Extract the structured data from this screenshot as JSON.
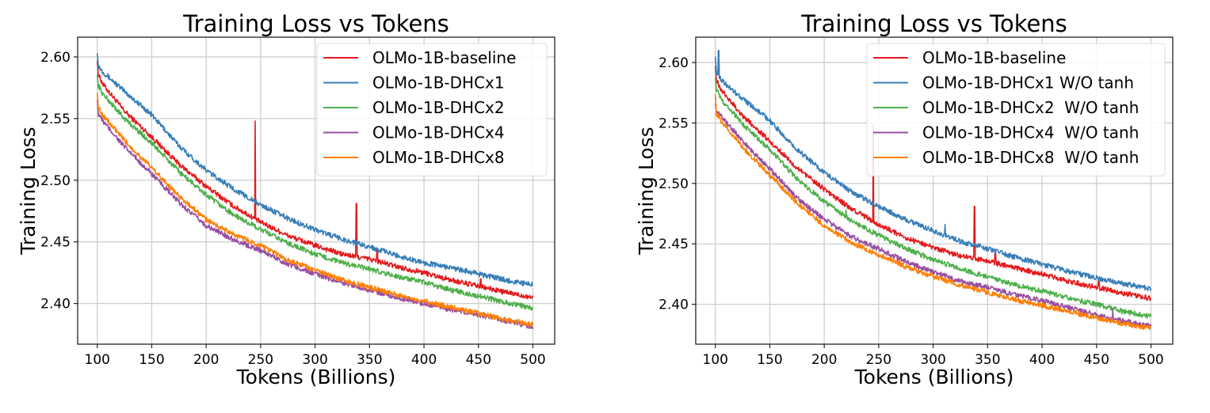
{
  "chart_data": [
    {
      "type": "line",
      "title": "Training Loss vs Tokens",
      "xlabel": "Tokens (Billions)",
      "ylabel": "Training Loss",
      "xlim": [
        82,
        520
      ],
      "ylim": [
        2.367,
        2.616
      ],
      "xticks": [
        100,
        150,
        200,
        250,
        300,
        350,
        400,
        450,
        500
      ],
      "yticks": [
        2.4,
        2.45,
        2.5,
        2.55,
        2.6
      ],
      "xtick_labels": [
        "100",
        "150",
        "200",
        "250",
        "300",
        "350",
        "400",
        "450",
        "500"
      ],
      "ytick_labels": [
        "2.40",
        "2.45",
        "2.50",
        "2.55",
        "2.60"
      ],
      "grid": true,
      "legend_position": "top-right",
      "x": [
        100,
        101,
        105,
        125,
        150,
        175,
        200,
        225,
        250,
        275,
        300,
        325,
        350,
        375,
        400,
        425,
        450,
        475,
        500
      ],
      "series": [
        {
          "name": "OLMo-1B-baseline",
          "color": "#e41a1c",
          "values": [
            2.597,
            2.586,
            2.578,
            2.556,
            2.535,
            2.513,
            2.495,
            2.479,
            2.466,
            2.455,
            2.447,
            2.44,
            2.436,
            2.43,
            2.425,
            2.419,
            2.414,
            2.409,
            2.405
          ],
          "spikes": [
            [
              245,
              2.548
            ],
            [
              338,
              2.481
            ],
            [
              357,
              2.444
            ],
            [
              452,
              2.42
            ]
          ]
        },
        {
          "name": "OLMo-1B-DHCx1",
          "color": "#377eb8",
          "values": [
            2.603,
            2.593,
            2.588,
            2.572,
            2.553,
            2.528,
            2.508,
            2.493,
            2.48,
            2.469,
            2.46,
            2.452,
            2.446,
            2.439,
            2.433,
            2.429,
            2.424,
            2.419,
            2.415
          ],
          "spikes": []
        },
        {
          "name": "OLMo-1B-DHCx2",
          "color": "#4daf4a",
          "values": [
            2.586,
            2.577,
            2.57,
            2.55,
            2.53,
            2.507,
            2.488,
            2.472,
            2.46,
            2.449,
            2.44,
            2.433,
            2.428,
            2.422,
            2.417,
            2.411,
            2.406,
            2.401,
            2.396
          ],
          "spikes": []
        },
        {
          "name": "OLMo-1B-DHCx4",
          "color": "#984ea3",
          "values": [
            2.565,
            2.554,
            2.548,
            2.527,
            2.505,
            2.482,
            2.463,
            2.452,
            2.443,
            2.432,
            2.424,
            2.417,
            2.411,
            2.405,
            2.4,
            2.395,
            2.391,
            2.386,
            2.381
          ],
          "spikes": []
        },
        {
          "name": "OLMo-1B-DHCx8",
          "color": "#ff7f00",
          "values": [
            2.571,
            2.559,
            2.553,
            2.532,
            2.51,
            2.487,
            2.468,
            2.456,
            2.447,
            2.435,
            2.427,
            2.419,
            2.413,
            2.407,
            2.402,
            2.397,
            2.392,
            2.387,
            2.383
          ],
          "spikes": []
        }
      ]
    },
    {
      "type": "line",
      "title": "Training Loss vs Tokens",
      "xlabel": "Tokens (Billions)",
      "ylabel": "Training Loss",
      "xlim": [
        82,
        520
      ],
      "ylim": [
        2.367,
        2.621
      ],
      "xticks": [
        100,
        150,
        200,
        250,
        300,
        350,
        400,
        450,
        500
      ],
      "yticks": [
        2.4,
        2.45,
        2.5,
        2.55,
        2.6
      ],
      "xtick_labels": [
        "100",
        "150",
        "200",
        "250",
        "300",
        "350",
        "400",
        "450",
        "500"
      ],
      "ytick_labels": [
        "2.40",
        "2.45",
        "2.50",
        "2.55",
        "2.60"
      ],
      "grid": true,
      "legend_position": "top-right",
      "x": [
        100,
        101,
        105,
        125,
        150,
        175,
        200,
        225,
        250,
        275,
        300,
        325,
        350,
        375,
        400,
        425,
        450,
        475,
        500
      ],
      "series": [
        {
          "name": "OLMo-1B-baseline",
          "color": "#e41a1c",
          "values": [
            2.597,
            2.586,
            2.578,
            2.556,
            2.535,
            2.513,
            2.495,
            2.479,
            2.466,
            2.455,
            2.447,
            2.44,
            2.436,
            2.43,
            2.425,
            2.419,
            2.414,
            2.409,
            2.405
          ],
          "spikes": [
            [
              245,
              2.548
            ],
            [
              338,
              2.481
            ],
            [
              357,
              2.444
            ],
            [
              452,
              2.42
            ]
          ]
        },
        {
          "name": "OLMo-1B-DHCx1 W/O tanh",
          "color": "#377eb8",
          "values": [
            2.605,
            2.592,
            2.586,
            2.57,
            2.552,
            2.528,
            2.509,
            2.493,
            2.481,
            2.47,
            2.461,
            2.452,
            2.446,
            2.439,
            2.433,
            2.427,
            2.422,
            2.417,
            2.413
          ],
          "spikes": [
            [
              103,
              2.61
            ],
            [
              311,
              2.466
            ]
          ]
        },
        {
          "name": "OLMo-1B-DHCx2  W/O tanh",
          "color": "#4daf4a",
          "values": [
            2.587,
            2.578,
            2.57,
            2.549,
            2.528,
            2.504,
            2.485,
            2.469,
            2.457,
            2.446,
            2.437,
            2.429,
            2.423,
            2.416,
            2.411,
            2.405,
            2.4,
            2.394,
            2.39
          ],
          "spikes": [
            [
              220,
              2.478
            ]
          ]
        },
        {
          "name": "OLMo-1B-DHCx4  W/O tanh",
          "color": "#984ea3",
          "values": [
            2.566,
            2.561,
            2.556,
            2.535,
            2.512,
            2.488,
            2.47,
            2.456,
            2.446,
            2.435,
            2.427,
            2.419,
            2.414,
            2.408,
            2.403,
            2.397,
            2.391,
            2.386,
            2.382
          ],
          "spikes": [
            [
              465,
              2.396
            ]
          ]
        },
        {
          "name": "OLMo-1B-DHCx8  W/O tanh",
          "color": "#ff7f00",
          "values": [
            2.574,
            2.558,
            2.552,
            2.53,
            2.507,
            2.484,
            2.465,
            2.451,
            2.441,
            2.431,
            2.423,
            2.416,
            2.41,
            2.404,
            2.399,
            2.394,
            2.389,
            2.384,
            2.38
          ],
          "spikes": []
        }
      ]
    }
  ]
}
